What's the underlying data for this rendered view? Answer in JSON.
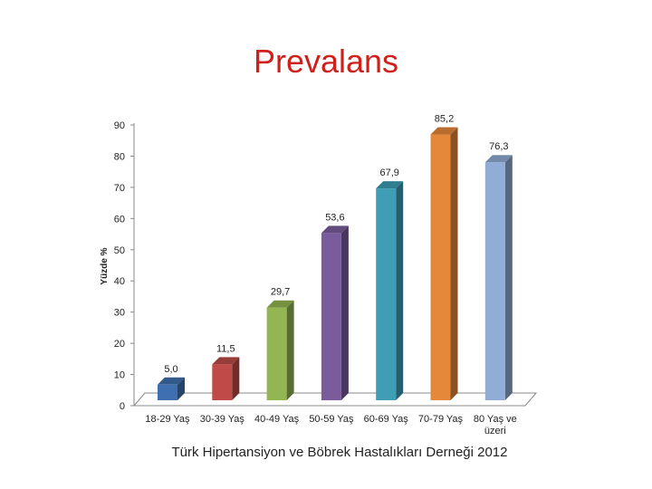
{
  "chart_data": {
    "type": "bar3d",
    "title": "Prevalans",
    "ylabel": "Yüzde %",
    "footnote": "Türk Hipertansiyon ve Böbrek Hastalıkları Derneği 2012",
    "categories": [
      "18-29 Yaş",
      "30-39 Yaş",
      "40-49 Yaş",
      "50-59 Yaş",
      "60-69 Yaş",
      "70-79 Yaş",
      "80 Yaş ve üzeri"
    ],
    "values": [
      5.0,
      11.5,
      29.7,
      53.6,
      67.9,
      85.2,
      76.3
    ],
    "value_labels": [
      "5,0",
      "11,5",
      "29,7",
      "53,6",
      "67,9",
      "85,2",
      "76,3"
    ],
    "colors": [
      "#3f6fae",
      "#be4b48",
      "#93b552",
      "#7a5c9c",
      "#3f9db5",
      "#e6883a",
      "#91acd6"
    ],
    "ylim": [
      0,
      90
    ],
    "yticks": [
      0,
      10,
      20,
      30,
      40,
      50,
      60,
      70,
      80,
      90
    ],
    "grid": false
  }
}
